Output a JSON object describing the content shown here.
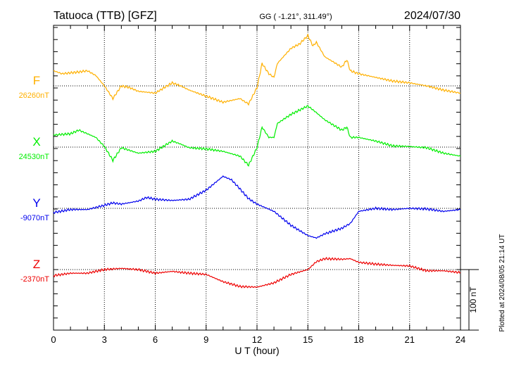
{
  "chart_data": {
    "type": "line",
    "title": "Tatuoca (TTB)  [GFZ]",
    "subtitle": "GG ( -1.21°, 311.49°)",
    "date": "2024/07/30",
    "xlabel": "U T (hour)",
    "xlim": [
      0,
      24
    ],
    "xticks": [
      "0",
      "3",
      "6",
      "9",
      "12",
      "15",
      "18",
      "21",
      "24"
    ],
    "scale_label": "100 nT",
    "scale_nT": 100,
    "footer": "Plotted at 2024/08/05 21:14 UT",
    "grid": true,
    "series": [
      {
        "name": "F",
        "baseline_label": "26260nT",
        "color": "#ffb000",
        "x": [
          0,
          0.5,
          1.5,
          2,
          2.5,
          3,
          3.5,
          4,
          4.5,
          5,
          6,
          7,
          7.5,
          8,
          9,
          10,
          11,
          11.5,
          12,
          12.3,
          12.7,
          13,
          13.2,
          14,
          14.5,
          15,
          15.3,
          15.5,
          16,
          17,
          17.3,
          17.5,
          18,
          19,
          20,
          21,
          22,
          23,
          24
        ],
        "values": [
          25,
          20,
          23,
          25,
          17,
          0,
          -21,
          0,
          -3,
          -9,
          -12,
          5,
          0,
          -7,
          -17,
          -27,
          -21,
          -30,
          -3,
          37,
          20,
          14,
          37,
          62,
          69,
          83,
          66,
          72,
          48,
          31,
          43,
          25,
          20,
          14,
          8,
          5,
          0,
          -7,
          -12
        ]
      },
      {
        "name": "X",
        "baseline_label": "24530nT",
        "color": "#00ee00",
        "x": [
          0,
          1,
          1.5,
          2,
          2.5,
          3,
          3.5,
          4,
          5,
          6,
          7,
          7.5,
          8,
          9,
          10,
          11,
          11.5,
          12,
          12.3,
          12.7,
          13,
          13.2,
          14,
          15,
          15.5,
          16,
          17,
          17.3,
          17.5,
          18,
          19,
          20,
          21,
          22,
          23,
          24
        ],
        "values": [
          20,
          22,
          28,
          22,
          16,
          1,
          -22,
          -1,
          -10,
          -7,
          10,
          5,
          -1,
          -3,
          -7,
          -15,
          -30,
          -1,
          33,
          16,
          16,
          39,
          54,
          68,
          57,
          45,
          28,
          33,
          16,
          16,
          10,
          2,
          1,
          -1,
          -10,
          -15
        ]
      },
      {
        "name": "Y",
        "baseline_label": "-9070nT",
        "color": "#0000ee",
        "x": [
          0,
          1,
          2,
          3,
          3.5,
          4,
          5,
          5.5,
          6,
          7,
          8,
          9,
          10,
          10.5,
          11,
          11.5,
          12,
          13,
          14,
          15,
          15.5,
          16,
          17,
          17.5,
          18,
          19,
          20,
          21,
          22,
          23,
          24
        ],
        "values": [
          -7,
          -2,
          -2,
          5,
          9,
          7,
          12,
          18,
          15,
          13,
          15,
          30,
          53,
          47,
          32,
          16,
          7,
          -5,
          -28,
          -45,
          -49,
          -42,
          -33,
          -25,
          -5,
          0,
          -2,
          0,
          -1,
          -5,
          -2
        ]
      },
      {
        "name": "Z",
        "baseline_label": "-2370nT",
        "color": "#ee0000",
        "x": [
          0,
          1,
          2,
          3,
          4,
          5,
          6,
          7,
          8,
          9,
          10,
          11,
          12,
          13,
          14,
          15,
          15.5,
          16,
          17,
          17.5,
          18,
          19,
          20,
          21,
          22,
          23,
          24
        ],
        "values": [
          -10,
          -6,
          -6,
          0,
          2,
          0,
          -6,
          -3,
          -6,
          -8,
          -20,
          -28,
          -29,
          -22,
          -8,
          0,
          13,
          18,
          17,
          18,
          12,
          9,
          7,
          6,
          -2,
          -2,
          -5
        ]
      }
    ]
  }
}
